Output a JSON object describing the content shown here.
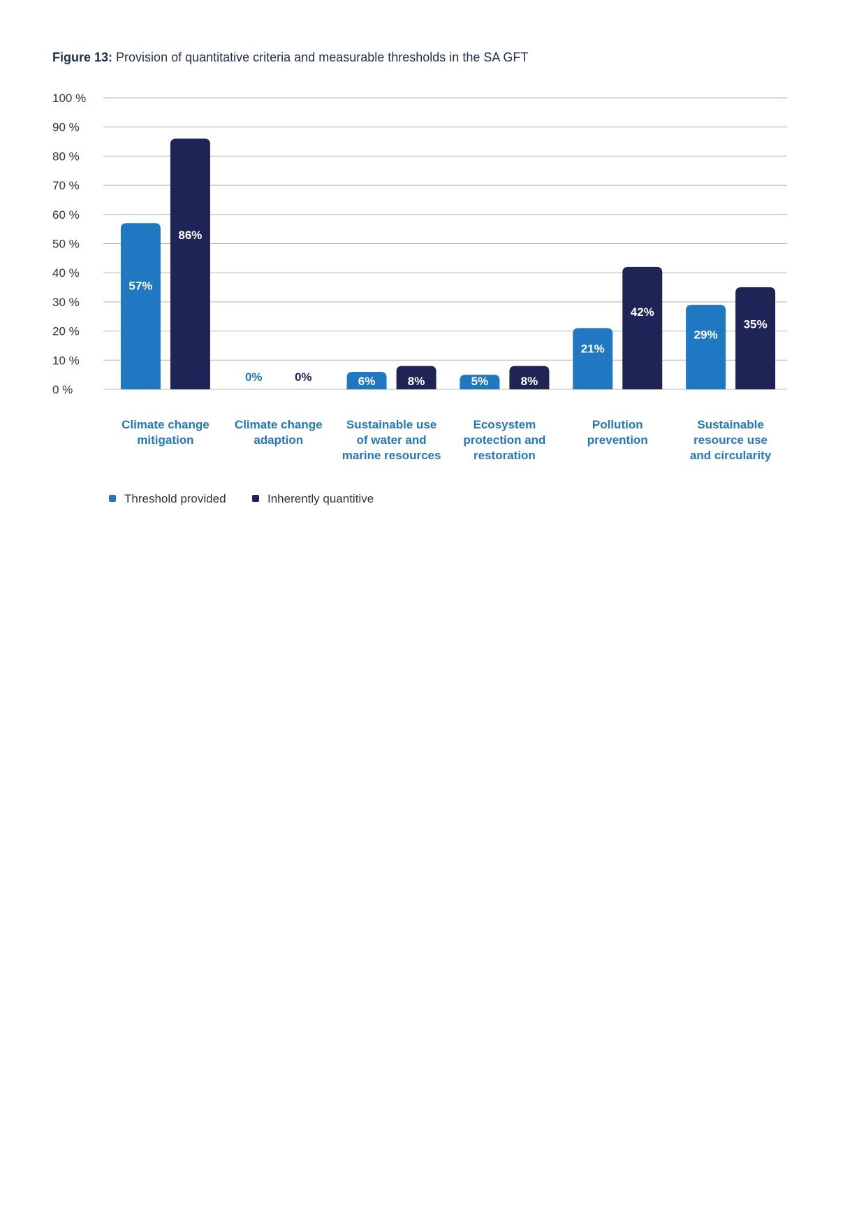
{
  "figure": {
    "prefix": "Figure 13:",
    "title": "Provision of quantitative criteria and measurable thresholds in the SA GFT"
  },
  "colors": {
    "series1": "#2178c2",
    "series2": "#1f2457",
    "grid": "#b4b4b4",
    "category_text": "#2178c2"
  },
  "chart_data": {
    "type": "bar",
    "title": "Provision of quantitative criteria and measurable thresholds in the SA GFT",
    "categories": [
      [
        "Climate change",
        "mitigation"
      ],
      [
        "Climate change",
        "adaption"
      ],
      [
        "Sustainable use",
        "of water and",
        "marine resources"
      ],
      [
        "Ecosystem",
        "protection and",
        "restoration"
      ],
      [
        "Pollution",
        "prevention"
      ],
      [
        "Sustainable",
        "resource use",
        "and circularity"
      ]
    ],
    "series": [
      {
        "name": "Threshold provided",
        "values": [
          57,
          0,
          6,
          5,
          21,
          29
        ],
        "labels": [
          "57%",
          "0%",
          "6%",
          "5%",
          "21%",
          "29%"
        ]
      },
      {
        "name": "Inherently quantitive",
        "values": [
          86,
          0,
          8,
          8,
          42,
          35
        ],
        "labels": [
          "86%",
          "0%",
          "8%",
          "8%",
          "42%",
          "35%"
        ]
      }
    ],
    "yticks": [
      "0 %",
      "10 %",
      "20 %",
      "30 %",
      "40 %",
      "50 %",
      "60 %",
      "70 %",
      "80 %",
      "90 %",
      "100 %"
    ],
    "ylim": [
      0,
      100
    ],
    "grid": true,
    "legend": "bottom-left"
  }
}
